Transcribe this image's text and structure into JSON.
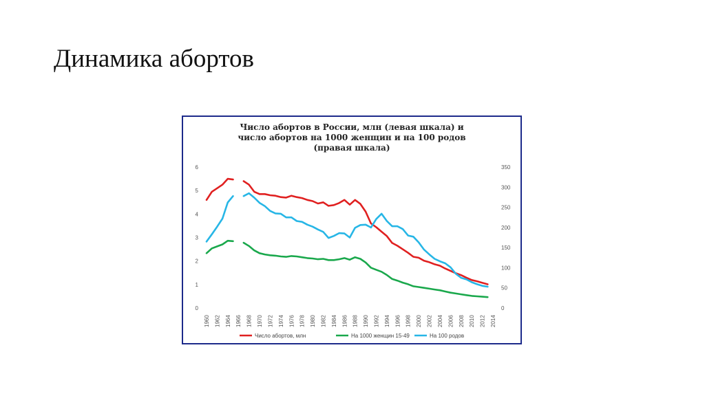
{
  "slide": {
    "title": "Динамика абортов"
  },
  "chart_data": {
    "type": "line",
    "title_lines": [
      "Число абортов в России, млн (левая шкала) и",
      "число абортов на 1000 женщин и на 100 родов",
      "(правая шкала)"
    ],
    "x_ticks": [
      "1960",
      "1962",
      "1964",
      "1966",
      "1968",
      "1970",
      "1972",
      "1974",
      "1976",
      "1978",
      "1980",
      "1982",
      "1984",
      "1986",
      "1988",
      "1990",
      "1992",
      "1994",
      "1996",
      "1998",
      "2000",
      "2002",
      "2004",
      "2006",
      "2008",
      "2010",
      "2012",
      "2014"
    ],
    "xlim": [
      1960,
      2014
    ],
    "y_left": {
      "ticks": [
        "0",
        "1",
        "2",
        "3",
        "4",
        "5",
        "6"
      ],
      "ylim": [
        0,
        6
      ]
    },
    "y_right": {
      "ticks": [
        "0",
        "50",
        "100",
        "150",
        "200",
        "250",
        "300",
        "350"
      ],
      "ylim": [
        0,
        350
      ]
    },
    "grid": false,
    "legend_position": "bottom",
    "series": [
      {
        "name": "Число абортов, млн",
        "axis": "left",
        "color": "#e02020",
        "points": [
          [
            1960,
            4.6
          ],
          [
            1961,
            4.95
          ],
          [
            1962,
            5.1
          ],
          [
            1963,
            5.25
          ],
          [
            1964,
            5.5
          ],
          [
            1965,
            5.47
          ],
          [
            1966,
            null
          ],
          [
            1967,
            5.4
          ],
          [
            1968,
            5.25
          ],
          [
            1969,
            4.95
          ],
          [
            1970,
            4.85
          ],
          [
            1971,
            4.85
          ],
          [
            1972,
            4.8
          ],
          [
            1973,
            4.78
          ],
          [
            1974,
            4.72
          ],
          [
            1975,
            4.7
          ],
          [
            1976,
            4.78
          ],
          [
            1977,
            4.72
          ],
          [
            1978,
            4.68
          ],
          [
            1979,
            4.6
          ],
          [
            1980,
            4.55
          ],
          [
            1981,
            4.45
          ],
          [
            1982,
            4.5
          ],
          [
            1983,
            4.35
          ],
          [
            1984,
            4.38
          ],
          [
            1985,
            4.47
          ],
          [
            1986,
            4.6
          ],
          [
            1987,
            4.4
          ],
          [
            1988,
            4.6
          ],
          [
            1989,
            4.43
          ],
          [
            1990,
            4.1
          ],
          [
            1991,
            3.6
          ],
          [
            1992,
            3.44
          ],
          [
            1993,
            3.25
          ],
          [
            1994,
            3.06
          ],
          [
            1995,
            2.77
          ],
          [
            1996,
            2.65
          ],
          [
            1997,
            2.5
          ],
          [
            1998,
            2.35
          ],
          [
            1999,
            2.18
          ],
          [
            2000,
            2.14
          ],
          [
            2001,
            2.01
          ],
          [
            2002,
            1.95
          ],
          [
            2003,
            1.86
          ],
          [
            2004,
            1.8
          ],
          [
            2005,
            1.68
          ],
          [
            2006,
            1.58
          ],
          [
            2007,
            1.48
          ],
          [
            2008,
            1.4
          ],
          [
            2009,
            1.29
          ],
          [
            2010,
            1.19
          ],
          [
            2011,
            1.14
          ],
          [
            2012,
            1.07
          ],
          [
            2013,
            1.01
          ]
        ]
      },
      {
        "name": "На 1000 женщин 15-49",
        "axis": "right",
        "color": "#1aa84c",
        "points": [
          [
            1960,
            136
          ],
          [
            1961,
            148
          ],
          [
            1962,
            153
          ],
          [
            1963,
            158
          ],
          [
            1964,
            167
          ],
          [
            1965,
            166
          ],
          [
            1966,
            null
          ],
          [
            1967,
            162
          ],
          [
            1968,
            154
          ],
          [
            1969,
            143
          ],
          [
            1970,
            136
          ],
          [
            1971,
            133
          ],
          [
            1972,
            131
          ],
          [
            1973,
            130
          ],
          [
            1974,
            128
          ],
          [
            1975,
            127
          ],
          [
            1976,
            129
          ],
          [
            1977,
            128
          ],
          [
            1978,
            126
          ],
          [
            1979,
            124
          ],
          [
            1980,
            123
          ],
          [
            1981,
            121
          ],
          [
            1982,
            122
          ],
          [
            1983,
            119
          ],
          [
            1984,
            119
          ],
          [
            1985,
            121
          ],
          [
            1986,
            124
          ],
          [
            1987,
            120
          ],
          [
            1988,
            126
          ],
          [
            1989,
            122
          ],
          [
            1990,
            113
          ],
          [
            1991,
            100
          ],
          [
            1992,
            95
          ],
          [
            1993,
            90
          ],
          [
            1994,
            82
          ],
          [
            1995,
            72
          ],
          [
            1996,
            68
          ],
          [
            1997,
            63
          ],
          [
            1998,
            59
          ],
          [
            1999,
            54
          ],
          [
            2000,
            52
          ],
          [
            2001,
            50
          ],
          [
            2002,
            48
          ],
          [
            2003,
            46
          ],
          [
            2004,
            44
          ],
          [
            2005,
            41
          ],
          [
            2006,
            38
          ],
          [
            2007,
            36
          ],
          [
            2008,
            34
          ],
          [
            2009,
            32
          ],
          [
            2010,
            30
          ],
          [
            2011,
            29
          ],
          [
            2012,
            28
          ],
          [
            2013,
            27
          ]
        ]
      },
      {
        "name": "На 100 родов",
        "axis": "right",
        "color": "#27b6e6",
        "points": [
          [
            1960,
            165
          ],
          [
            1961,
            183
          ],
          [
            1962,
            202
          ],
          [
            1963,
            222
          ],
          [
            1964,
            262
          ],
          [
            1965,
            278
          ],
          [
            1966,
            null
          ],
          [
            1967,
            278
          ],
          [
            1968,
            285
          ],
          [
            1969,
            274
          ],
          [
            1970,
            261
          ],
          [
            1971,
            253
          ],
          [
            1972,
            241
          ],
          [
            1973,
            235
          ],
          [
            1974,
            234
          ],
          [
            1975,
            225
          ],
          [
            1976,
            225
          ],
          [
            1977,
            216
          ],
          [
            1978,
            214
          ],
          [
            1979,
            207
          ],
          [
            1980,
            202
          ],
          [
            1981,
            195
          ],
          [
            1982,
            189
          ],
          [
            1983,
            174
          ],
          [
            1984,
            179
          ],
          [
            1985,
            186
          ],
          [
            1986,
            185
          ],
          [
            1987,
            175
          ],
          [
            1988,
            199
          ],
          [
            1989,
            206
          ],
          [
            1990,
            207
          ],
          [
            1991,
            200
          ],
          [
            1992,
            221
          ],
          [
            1993,
            234
          ],
          [
            1994,
            216
          ],
          [
            1995,
            203
          ],
          [
            1996,
            203
          ],
          [
            1997,
            196
          ],
          [
            1998,
            180
          ],
          [
            1999,
            177
          ],
          [
            2000,
            163
          ],
          [
            2001,
            145
          ],
          [
            2002,
            133
          ],
          [
            2003,
            122
          ],
          [
            2004,
            116
          ],
          [
            2005,
            111
          ],
          [
            2006,
            101
          ],
          [
            2007,
            85
          ],
          [
            2008,
            75
          ],
          [
            2009,
            71
          ],
          [
            2010,
            64
          ],
          [
            2011,
            59
          ],
          [
            2012,
            55
          ],
          [
            2013,
            53
          ]
        ]
      }
    ]
  }
}
